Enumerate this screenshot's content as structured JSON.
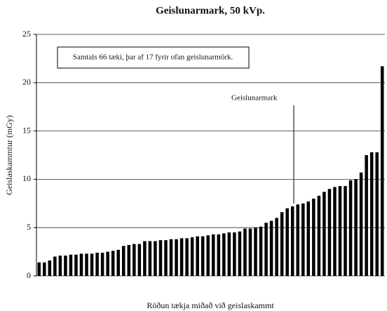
{
  "chart_data": {
    "type": "bar",
    "title": "Geislunarmark, 50 kVp.",
    "x_label": "Röðun tækja miðað við geislaskammt",
    "y_label": "Geislaskammtur (mGy)",
    "annotations": [
      "Samtals 66 tæki, þar af 17 fyrir ofan geislunarmörk.",
      "Geislunarmark"
    ],
    "values": [
      1.4,
      1.4,
      1.6,
      2.0,
      2.1,
      2.1,
      2.2,
      2.2,
      2.3,
      2.3,
      2.3,
      2.4,
      2.4,
      2.5,
      2.6,
      2.7,
      3.1,
      3.2,
      3.3,
      3.3,
      3.6,
      3.6,
      3.6,
      3.7,
      3.7,
      3.8,
      3.8,
      3.9,
      3.9,
      4.0,
      4.1,
      4.1,
      4.2,
      4.3,
      4.3,
      4.4,
      4.5,
      4.5,
      4.6,
      4.9,
      4.9,
      5.0,
      5.1,
      5.5,
      5.7,
      6.0,
      6.6,
      7.0,
      7.2,
      7.4,
      7.5,
      7.7,
      8.0,
      8.3,
      8.7,
      9.0,
      9.2,
      9.3,
      9.3,
      9.9,
      10.0,
      10.7,
      12.5,
      12.8,
      12.8,
      21.7
    ],
    "color": "#000000",
    "ylim": [
      0,
      25
    ],
    "yticks": [
      0,
      5,
      10,
      15,
      20,
      25
    ],
    "grid": true
  }
}
